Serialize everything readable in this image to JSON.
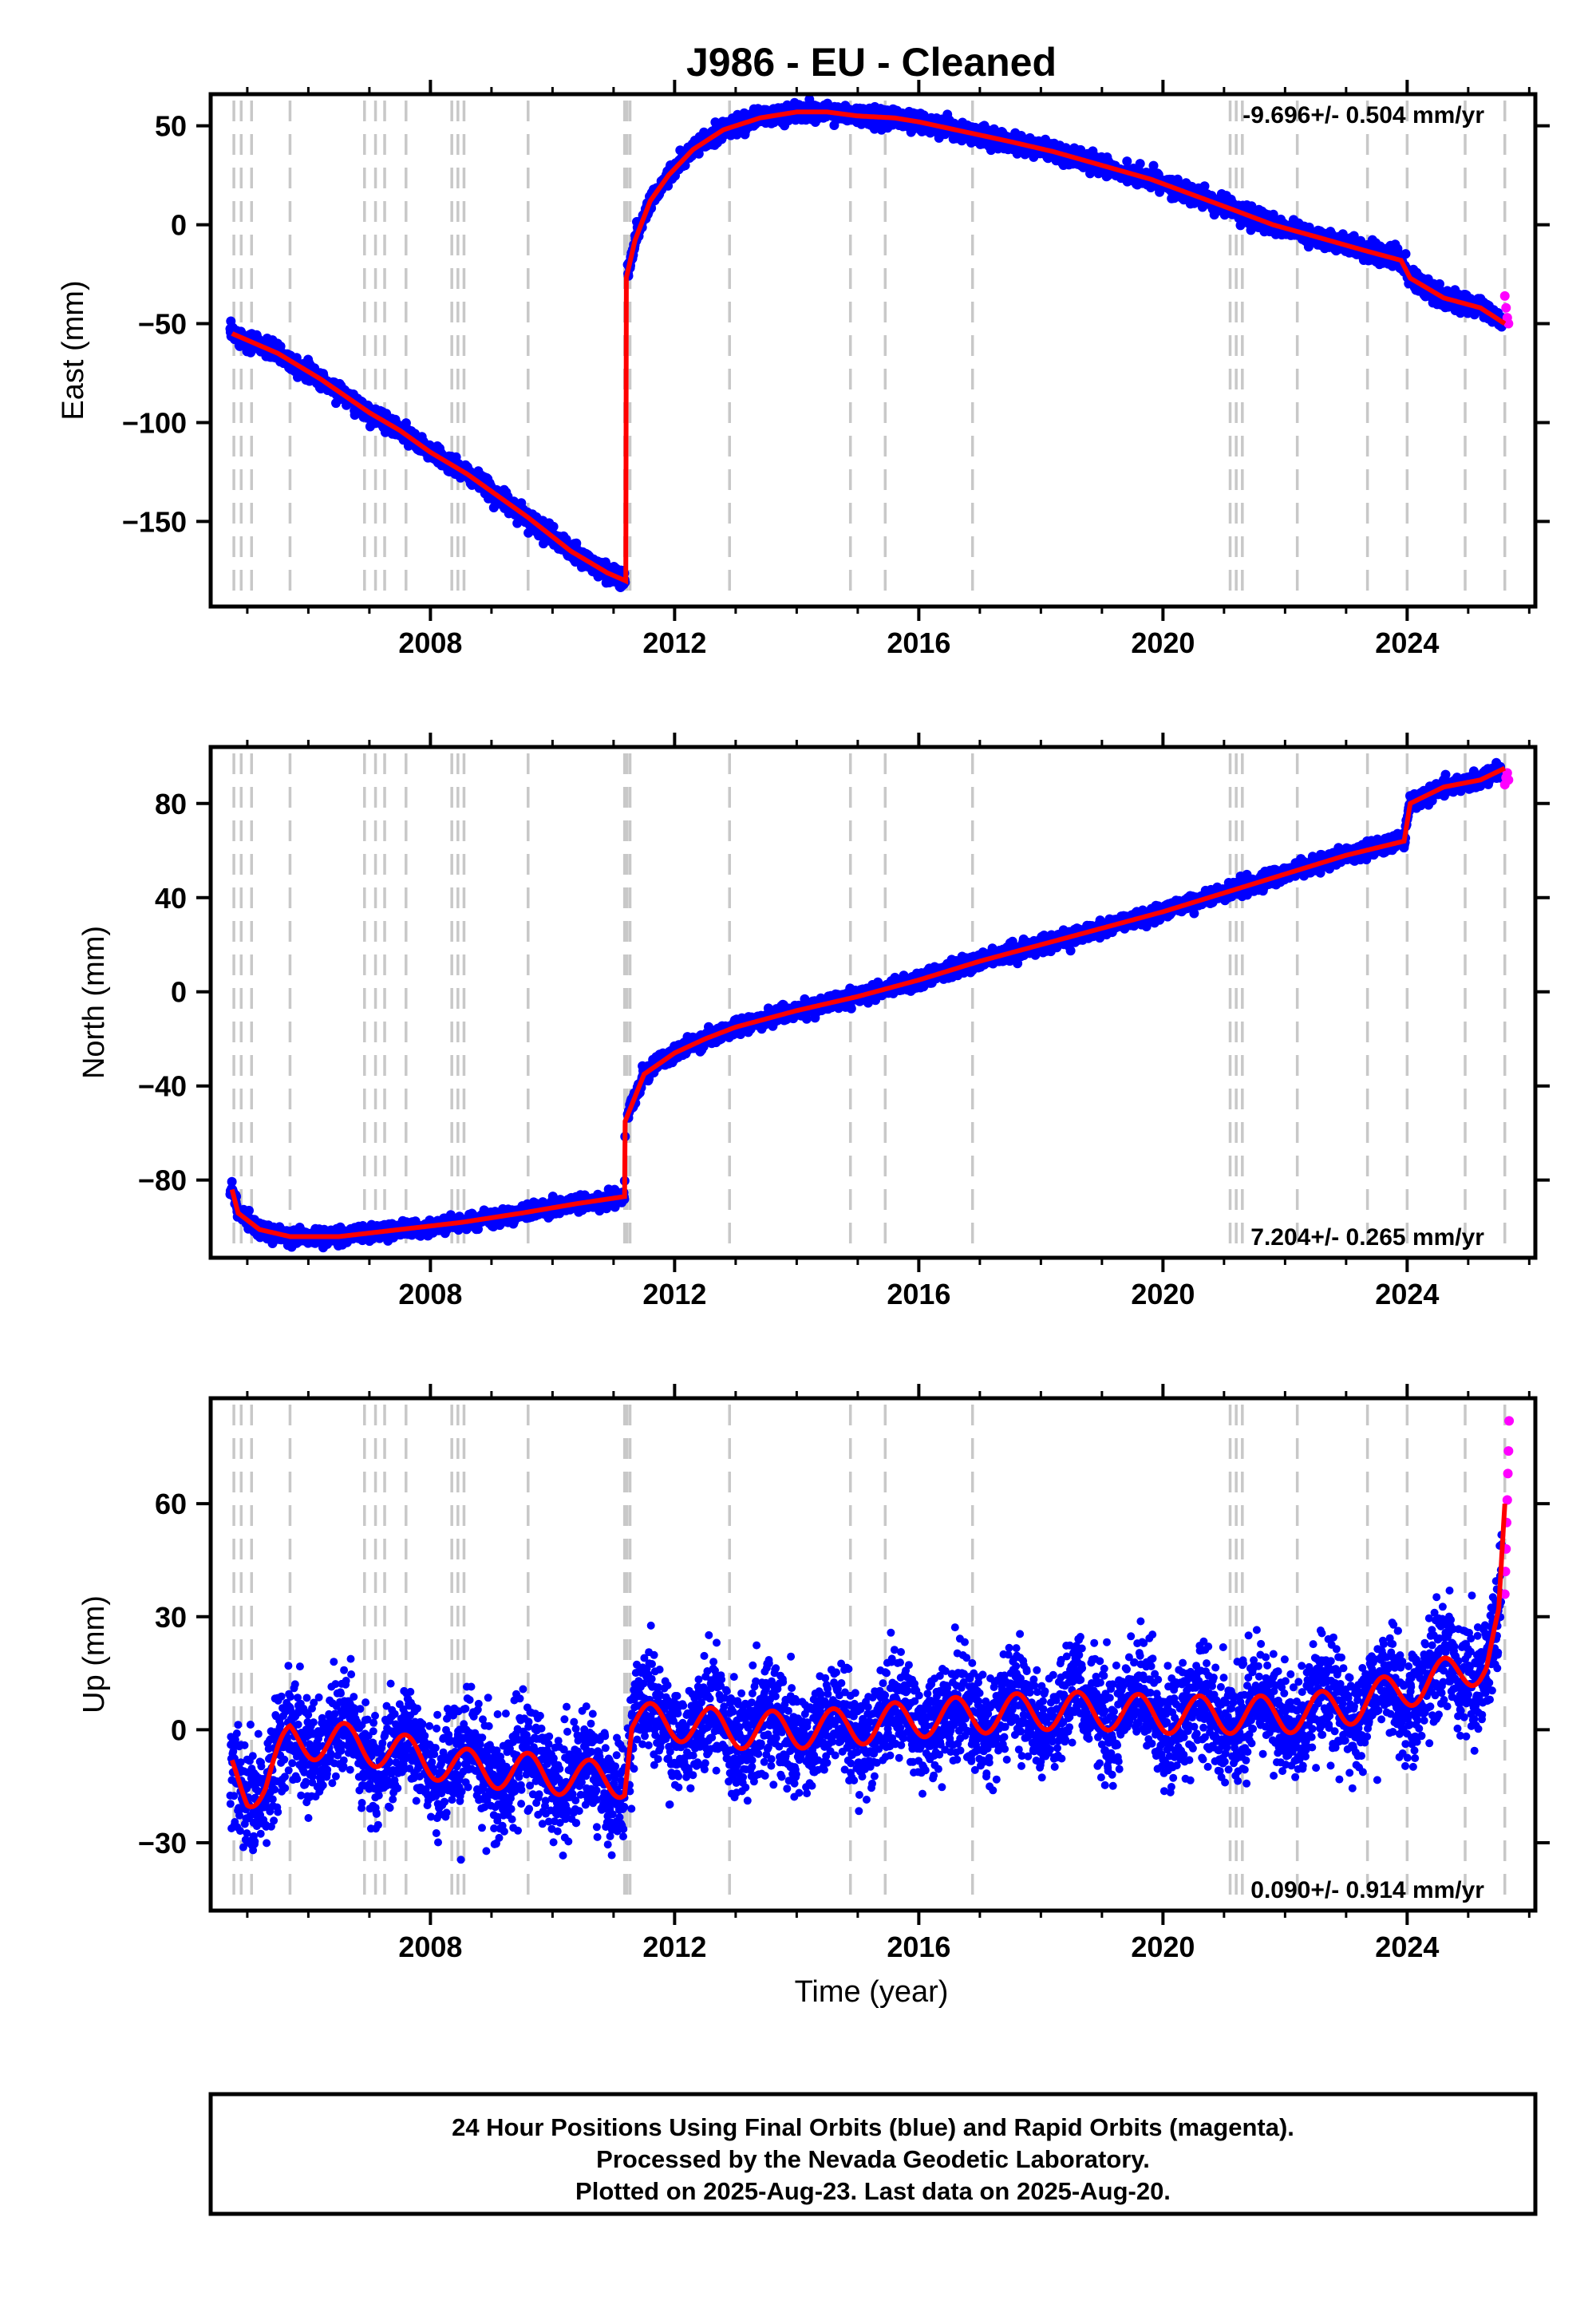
{
  "title": "J986  - EU - Cleaned",
  "x_label": "Time (year)",
  "footer": {
    "line1": "24 Hour Positions Using Final Orbits (blue) and Rapid Orbits (magenta).",
    "line2": "Processed by the Nevada Geodetic Laboratory.",
    "line3": "Plotted on 2025-Aug-23. Last data on 2025-Aug-20."
  },
  "colors": {
    "final": "#0000ff",
    "rapid": "#ff00ff",
    "model": "#ff0000",
    "event_lines": "#c8c8c8",
    "frame": "#000000"
  },
  "chart_data": [
    {
      "type": "scatter",
      "name": "east",
      "ylabel": "East (mm)",
      "rate_text": "-9.696+/- 0.504 mm/yr",
      "xlim": [
        2004.4,
        2026.1
      ],
      "ylim": [
        -193,
        66
      ],
      "xticks": [
        2008,
        2012,
        2016,
        2020,
        2024
      ],
      "yticks": [
        -150,
        -100,
        -50,
        0,
        50
      ],
      "grid": false,
      "model": [
        [
          2004.75,
          -55
        ],
        [
          2005.5,
          -65
        ],
        [
          2006.2,
          -78
        ],
        [
          2007.0,
          -95
        ],
        [
          2007.5,
          -104
        ],
        [
          2008.0,
          -115
        ],
        [
          2008.6,
          -126
        ],
        [
          2009.6,
          -148
        ],
        [
          2010.3,
          -165
        ],
        [
          2010.9,
          -176
        ],
        [
          2011.2,
          -180
        ],
        [
          2011.2,
          -28
        ],
        [
          2011.35,
          -8
        ],
        [
          2011.6,
          12
        ],
        [
          2011.9,
          25
        ],
        [
          2012.3,
          38
        ],
        [
          2012.8,
          48
        ],
        [
          2013.4,
          54
        ],
        [
          2014.0,
          57
        ],
        [
          2014.5,
          57
        ],
        [
          2015.0,
          55
        ],
        [
          2015.6,
          54
        ],
        [
          2016.0,
          52
        ],
        [
          2016.9,
          46
        ],
        [
          2017.5,
          42
        ],
        [
          2018.2,
          37
        ],
        [
          2019.0,
          30
        ],
        [
          2019.8,
          23
        ],
        [
          2020.5,
          15
        ],
        [
          2021.2,
          7
        ],
        [
          2021.8,
          0
        ],
        [
          2022.5,
          -6
        ],
        [
          2023.3,
          -13
        ],
        [
          2023.9,
          -18
        ],
        [
          2024.05,
          -27
        ],
        [
          2024.6,
          -37
        ],
        [
          2025.2,
          -42
        ],
        [
          2025.6,
          -50
        ]
      ],
      "events": [
        2004.78,
        2004.9,
        2005.07,
        2005.7,
        2006.92,
        2007.1,
        2007.25,
        2007.6,
        2008.35,
        2008.45,
        2008.55,
        2009.6,
        2011.18,
        2011.22,
        2011.27,
        2012.9,
        2014.88,
        2015.45,
        2016.88,
        2021.1,
        2021.2,
        2021.3,
        2022.2,
        2023.35,
        2024.0,
        2024.95,
        2025.6
      ],
      "final_noise_sd": 2.2,
      "final_end_year": 2025.55,
      "rapid_points": [
        [
          2025.6,
          -36
        ],
        [
          2025.62,
          -42
        ],
        [
          2025.64,
          -47
        ],
        [
          2025.66,
          -50
        ]
      ]
    },
    {
      "type": "scatter",
      "name": "north",
      "ylabel": "North (mm)",
      "rate_text": "7.204+/- 0.265 mm/yr",
      "xlim": [
        2004.4,
        2026.1
      ],
      "ylim": [
        -113,
        104
      ],
      "xticks": [
        2008,
        2012,
        2016,
        2020,
        2024
      ],
      "yticks": [
        -80,
        -40,
        0,
        40,
        80
      ],
      "grid": false,
      "model": [
        [
          2004.75,
          -84
        ],
        [
          2004.85,
          -94
        ],
        [
          2005.2,
          -101
        ],
        [
          2005.7,
          -104
        ],
        [
          2006.5,
          -104
        ],
        [
          2007.5,
          -101
        ],
        [
          2008.5,
          -98
        ],
        [
          2009.5,
          -94
        ],
        [
          2010.4,
          -90
        ],
        [
          2011.18,
          -87
        ],
        [
          2011.19,
          -55
        ],
        [
          2011.5,
          -35
        ],
        [
          2012.0,
          -26
        ],
        [
          2012.5,
          -20
        ],
        [
          2013.0,
          -15
        ],
        [
          2014.0,
          -8
        ],
        [
          2015.0,
          -2
        ],
        [
          2016.0,
          5
        ],
        [
          2017.0,
          13
        ],
        [
          2018.0,
          20
        ],
        [
          2019.0,
          27
        ],
        [
          2020.0,
          34
        ],
        [
          2021.0,
          42
        ],
        [
          2022.0,
          50
        ],
        [
          2023.0,
          58
        ],
        [
          2023.95,
          64
        ],
        [
          2024.05,
          80
        ],
        [
          2024.6,
          87
        ],
        [
          2025.2,
          90
        ],
        [
          2025.6,
          95
        ]
      ],
      "events": [
        2004.78,
        2004.9,
        2005.07,
        2005.7,
        2006.92,
        2007.1,
        2007.25,
        2007.6,
        2008.35,
        2008.45,
        2008.55,
        2009.6,
        2011.18,
        2011.22,
        2011.27,
        2012.9,
        2014.88,
        2015.45,
        2016.88,
        2021.1,
        2021.2,
        2021.3,
        2022.2,
        2023.35,
        2024.0,
        2024.95,
        2025.6
      ],
      "final_noise_sd": 1.6,
      "final_end_year": 2025.55,
      "rapid_points": [
        [
          2025.6,
          88
        ],
        [
          2025.62,
          91
        ],
        [
          2025.64,
          93
        ],
        [
          2025.66,
          90
        ]
      ]
    },
    {
      "type": "scatter",
      "name": "up",
      "ylabel": "Up (mm)",
      "rate_text": "0.090+/- 0.914 mm/yr",
      "xlim": [
        2004.4,
        2026.1
      ],
      "ylim": [
        -48,
        88
      ],
      "xticks": [
        2008,
        2012,
        2016,
        2020,
        2024
      ],
      "yticks": [
        -30,
        0,
        30,
        60
      ],
      "grid": false,
      "model": [
        [
          2004.75,
          -11
        ],
        [
          2005.0,
          -16
        ],
        [
          2005.3,
          -14
        ],
        [
          2005.7,
          -3
        ],
        [
          2006.5,
          -3
        ],
        [
          2007.5,
          -6
        ],
        [
          2008.5,
          -10
        ],
        [
          2009.5,
          -11
        ],
        [
          2010.5,
          -13
        ],
        [
          2011.18,
          -13
        ],
        [
          2011.3,
          2
        ],
        [
          2012.0,
          2
        ],
        [
          2013.0,
          0
        ],
        [
          2014.0,
          0
        ],
        [
          2015.0,
          1
        ],
        [
          2016.0,
          3
        ],
        [
          2017.0,
          4
        ],
        [
          2018.0,
          5
        ],
        [
          2019.0,
          5
        ],
        [
          2020.0,
          4
        ],
        [
          2021.0,
          4
        ],
        [
          2022.0,
          4
        ],
        [
          2023.0,
          6
        ],
        [
          2024.0,
          11
        ],
        [
          2024.8,
          15
        ],
        [
          2025.3,
          18
        ],
        [
          2025.5,
          28
        ],
        [
          2025.6,
          55
        ]
      ],
      "seasonal_amplitude": 5,
      "events": [
        2004.78,
        2004.9,
        2005.07,
        2005.7,
        2006.92,
        2007.1,
        2007.25,
        2007.6,
        2008.35,
        2008.45,
        2008.55,
        2009.6,
        2011.18,
        2011.22,
        2011.27,
        2012.9,
        2014.88,
        2015.45,
        2016.88,
        2021.1,
        2021.2,
        2021.3,
        2022.2,
        2023.35,
        2024.0,
        2024.95,
        2025.6
      ],
      "final_noise_sd": 7,
      "final_end_year": 2025.55,
      "rapid_points": [
        [
          2025.6,
          36
        ],
        [
          2025.61,
          42
        ],
        [
          2025.62,
          48
        ],
        [
          2025.63,
          55
        ],
        [
          2025.64,
          61
        ],
        [
          2025.65,
          68
        ],
        [
          2025.66,
          74
        ],
        [
          2025.67,
          82
        ]
      ]
    }
  ]
}
